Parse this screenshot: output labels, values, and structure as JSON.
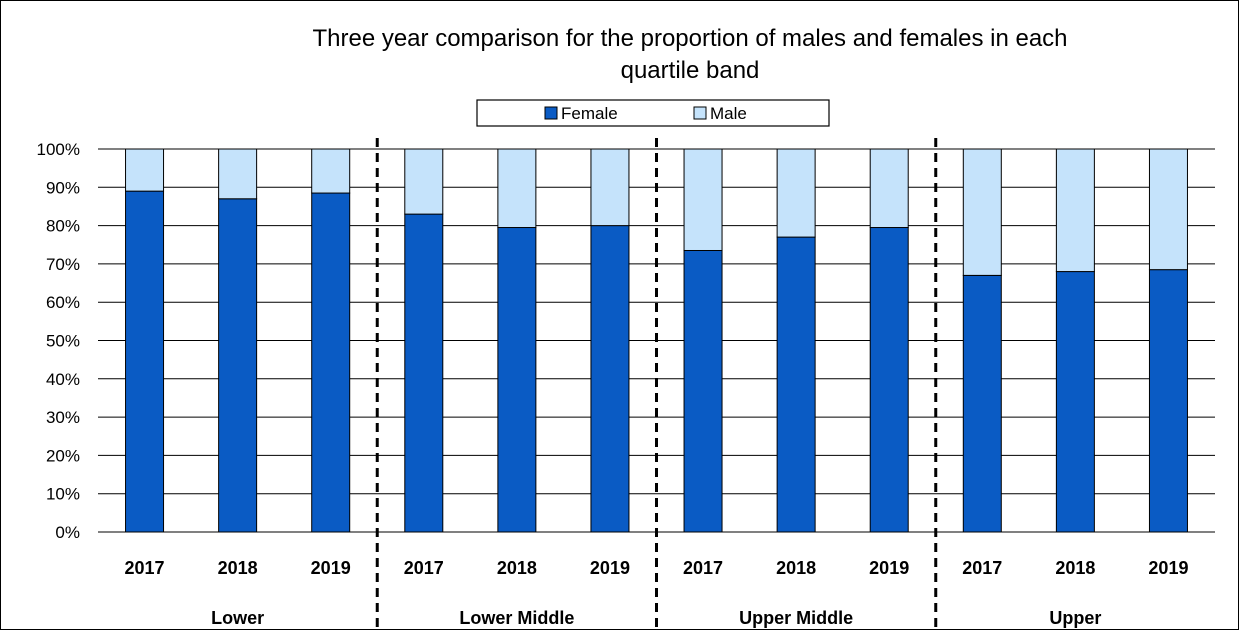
{
  "chart_data": {
    "type": "bar",
    "stacked": true,
    "title_line1": "Three year comparison for the proportion of males and females in each",
    "title_line2": "quartile band",
    "groups": [
      "Lower",
      "Lower Middle",
      "Upper Middle",
      "Upper"
    ],
    "years": [
      "2017",
      "2018",
      "2019"
    ],
    "series": [
      {
        "name": "Female",
        "color": "#0a5bc4",
        "values": [
          89,
          87,
          88.5,
          83,
          79.5,
          80,
          73.5,
          77,
          79.5,
          67,
          68,
          68.5
        ]
      },
      {
        "name": "Male",
        "color": "#c5e3fb",
        "values": [
          11,
          13,
          11.5,
          17,
          20.5,
          20,
          26.5,
          23,
          20.5,
          33,
          32,
          31.5
        ]
      }
    ],
    "ylim": [
      0,
      100
    ],
    "yticks": [
      "0%",
      "10%",
      "20%",
      "30%",
      "40%",
      "50%",
      "60%",
      "70%",
      "80%",
      "90%",
      "100%"
    ],
    "grid": true,
    "legend_position": "top"
  }
}
